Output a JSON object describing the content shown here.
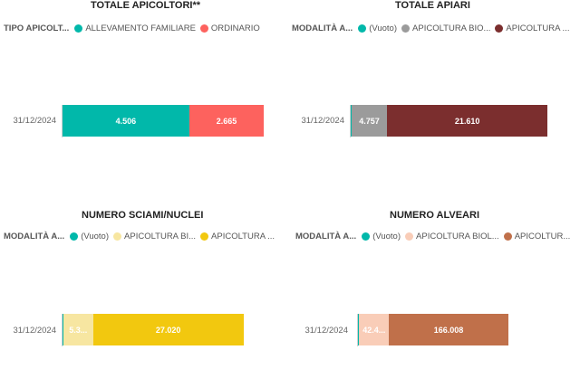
{
  "chart_data": [
    {
      "id": "apicoltori",
      "type": "bar",
      "orientation": "horizontal",
      "stacked": true,
      "title": "TOTALE APICOLTORI**",
      "legend_title": "TIPO APICOLT...",
      "categories": [
        "31/12/2024"
      ],
      "series": [
        {
          "name": "ALLEVAMENTO FAMILIARE",
          "label": "4.506",
          "values": [
            4506
          ],
          "color": "#01B8AA",
          "text_color": "#ffffff"
        },
        {
          "name": "ORDINARIO",
          "label": "2.665",
          "values": [
            2665
          ],
          "color": "#FD625E",
          "text_color": "#ffffff"
        }
      ]
    },
    {
      "id": "apiari",
      "type": "bar",
      "orientation": "horizontal",
      "stacked": true,
      "title": "TOTALE APIARI",
      "legend_title": "MODALITÀ A...",
      "categories": [
        "31/12/2024"
      ],
      "series": [
        {
          "name": "(Vuoto)",
          "label": "",
          "values": [
            8
          ],
          "color": "#01B8AA",
          "text_color": "#ffffff"
        },
        {
          "name": "APICOLTURA BIO...",
          "label": "4.757",
          "values": [
            4757
          ],
          "color": "#9B9B9B",
          "text_color": "#ffffff"
        },
        {
          "name": "APICOLTURA ...",
          "label": "21.610",
          "values": [
            21610
          ],
          "color": "#7B2E2E",
          "text_color": "#ffffff"
        }
      ]
    },
    {
      "id": "sciami",
      "type": "bar",
      "orientation": "horizontal",
      "stacked": true,
      "title": "NUMERO SCIAMI/NUCLEI",
      "legend_title": "MODALITÀ A...",
      "categories": [
        "31/12/2024"
      ],
      "series": [
        {
          "name": "(Vuoto)",
          "label": "",
          "values": [
            8
          ],
          "color": "#01B8AA",
          "text_color": "#ffffff"
        },
        {
          "name": "APICOLTURA BI...",
          "label": "5.3...",
          "values": [
            5300
          ],
          "color": "#F7E6A1",
          "text_color": "#ffffff"
        },
        {
          "name": "APICOLTURA ...",
          "label": "27.020",
          "values": [
            27020
          ],
          "color": "#F2C80F",
          "text_color": "#ffffff"
        }
      ]
    },
    {
      "id": "alveari",
      "type": "bar",
      "orientation": "horizontal",
      "stacked": true,
      "title": "NUMERO ALVEARI",
      "legend_title": "MODALITÀ A...",
      "categories": [
        "31/12/2024"
      ],
      "series": [
        {
          "name": "(Vuoto)",
          "label": "",
          "values": [
            80
          ],
          "color": "#01B8AA",
          "text_color": "#ffffff"
        },
        {
          "name": "APICOLTURA BIOL...",
          "label": "42.4...",
          "values": [
            42400
          ],
          "color": "#F9CDB8",
          "text_color": "#ffffff"
        },
        {
          "name": "APICOLTUR...",
          "label": "166.008",
          "values": [
            166008
          ],
          "color": "#C0704A",
          "text_color": "#ffffff"
        }
      ]
    }
  ]
}
